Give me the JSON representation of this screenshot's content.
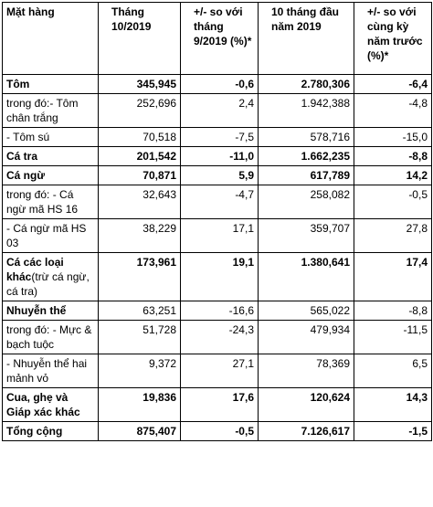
{
  "table": {
    "header": [
      "Mặt hàng",
      "Tháng 10/2019",
      "+/- so với tháng 9/2019 (%)*",
      "10 tháng đầu năm 2019",
      "+/- so với cùng kỳ năm trước (%)*"
    ],
    "rows": [
      {
        "cells": [
          "Tôm",
          "345,945",
          "-0,6",
          "2.780,306",
          "-6,4"
        ],
        "bold": [
          true,
          true,
          true,
          true,
          true
        ]
      },
      {
        "cells": [
          "trong đó:- Tôm chân trắng",
          "252,696",
          "2,4",
          "1.942,388",
          "-4,8"
        ],
        "bold": [
          false,
          false,
          false,
          false,
          false
        ]
      },
      {
        "cells": [
          "- Tôm sú",
          "70,518",
          "-7,5",
          "578,716",
          "-15,0"
        ],
        "bold": [
          false,
          false,
          false,
          false,
          false
        ]
      },
      {
        "cells": [
          "Cá tra",
          "201,542",
          "-11,0",
          "1.662,235",
          "-8,8"
        ],
        "bold": [
          true,
          true,
          true,
          true,
          true
        ]
      },
      {
        "cells": [
          "Cá ngừ",
          "70,871",
          "5,9",
          "617,789",
          "14,2"
        ],
        "bold": [
          true,
          true,
          true,
          true,
          true
        ]
      },
      {
        "cells": [
          "trong đó: - Cá ngừ mã HS 16",
          "32,643",
          "-4,7",
          "258,082",
          "-0,5"
        ],
        "bold": [
          false,
          false,
          false,
          false,
          false
        ]
      },
      {
        "cells": [
          "- Cá ngừ mã HS 03",
          "38,229",
          "17,1",
          "359,707",
          "27,8"
        ],
        "bold": [
          false,
          false,
          false,
          false,
          false
        ]
      },
      {
        "cells": [
          "Cá các loại khác",
          "173,961",
          "19,1",
          "1.380,641",
          "17,4"
        ],
        "note": "(trừ cá ngừ, cá tra)",
        "bold": [
          true,
          true,
          true,
          true,
          true
        ]
      },
      {
        "cells": [
          "Nhuyễn thể",
          "63,251",
          "-16,6",
          "565,022",
          "-8,8"
        ],
        "bold": [
          true,
          false,
          false,
          false,
          false
        ]
      },
      {
        "cells": [
          "trong đó: - Mực & bạch tuộc",
          "51,728",
          "-24,3",
          "479,934",
          "-11,5"
        ],
        "bold": [
          false,
          false,
          false,
          false,
          false
        ]
      },
      {
        "cells": [
          "- Nhuyễn thể hai mảnh vỏ",
          "9,372",
          "27,1",
          "78,369",
          "6,5"
        ],
        "bold": [
          false,
          false,
          false,
          false,
          false
        ]
      },
      {
        "cells": [
          "Cua, ghẹ và Giáp xác khác",
          "19,836",
          "17,6",
          "120,624",
          "14,3"
        ],
        "bold": [
          true,
          true,
          true,
          true,
          true
        ]
      },
      {
        "cells": [
          "Tổng cộng",
          "875,407",
          "-0,5",
          "7.126,617",
          "-1,5"
        ],
        "bold": [
          true,
          true,
          true,
          true,
          true
        ]
      }
    ]
  }
}
